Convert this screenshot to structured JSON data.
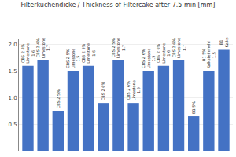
{
  "chart_data": {
    "type": "bar",
    "title": "Filterkuchendicke / Thickness of Filtercake after 7.5 min [mm]",
    "categories": [
      "CBS 2 4%\nLimestone\n1.6",
      "CBS 2 4%\nLimestone\n1.7",
      "CBS 2 5%",
      "CBS 2 5%\nLimestone\n1.5",
      "CBS 2 5%\nLimestone\n1.6",
      "CBS 2 6%",
      "CBS 2 5%\nLimestone\n1.7",
      "CBS 2 6%\nLimestone\n1.5",
      "CBS 2 6%\nLimestone\n1.5",
      "CBS 2 6%\nLimestone\n1.6",
      "CBS 2 6%\nLimestone\n1.7",
      "B1 5%",
      "B1 5%\nKalksteinmehl\n1.5",
      "B1\nKalks"
    ],
    "values": [
      1.6,
      1.7,
      0.75,
      1.5,
      1.6,
      0.9,
      1.7,
      0.9,
      1.5,
      1.6,
      1.7,
      0.65,
      1.5,
      1.9
    ],
    "color": "#4472C4",
    "ylim": [
      0,
      2.1
    ],
    "yticks": [
      0.5,
      {
        "value": 1.0,
        "label": "1.0"
      },
      1.5,
      {
        "value": 2.0,
        "label": "2.0"
      }
    ],
    "grid": true,
    "tick_labels": "y"
  }
}
